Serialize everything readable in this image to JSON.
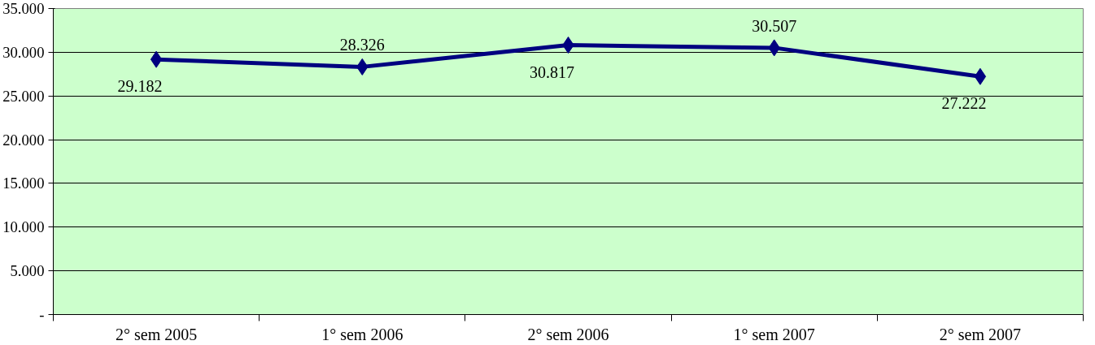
{
  "chart_data": {
    "type": "line",
    "categories": [
      "2° sem 2005",
      "1° sem 2006",
      "2° sem 2006",
      "1° sem 2007",
      "2° sem 2007"
    ],
    "series": [
      {
        "color": "#000080",
        "values": [
          29182,
          28326,
          30817,
          30507,
          27222
        ],
        "value_labels": [
          "29.182",
          "28.326",
          "30.817",
          "30.507",
          "27.222"
        ]
      }
    ],
    "ylim": [
      0,
      35000
    ],
    "yticks": [
      {
        "value": 0,
        "label": "-"
      },
      {
        "value": 5000,
        "label": "5.000"
      },
      {
        "value": 10000,
        "label": "10.000"
      },
      {
        "value": 15000,
        "label": "15.000"
      },
      {
        "value": 20000,
        "label": "20.000"
      },
      {
        "value": 25000,
        "label": "25.000"
      },
      {
        "value": 30000,
        "label": "30.000"
      },
      {
        "value": 35000,
        "label": "35.000"
      }
    ],
    "grid": "y",
    "marker": "diamond",
    "line_style": "solid"
  }
}
